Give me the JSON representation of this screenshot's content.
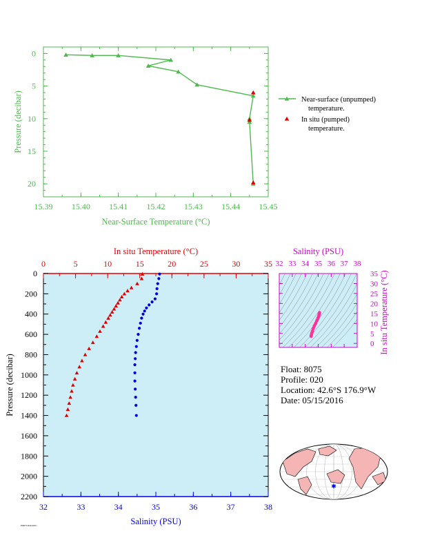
{
  "colors": {
    "green": "#4cba4c",
    "red": "#e00000",
    "blue": "#0000e0",
    "magenta": "#d000d0",
    "pink": "#ff3399",
    "panel_bg": "#cdedf7",
    "land": "#f5b5b5"
  },
  "chart_data": [
    {
      "type": "line",
      "xlabel": "Near-Surface Temperature (°C)",
      "ylabel": "Pressure (decibar)",
      "xlim": [
        15.39,
        15.45
      ],
      "ylim": [
        22,
        -1
      ],
      "xticks": [
        "15.39",
        "15.40",
        "15.41",
        "15.42",
        "15.43",
        "15.44",
        "15.45"
      ],
      "yticks": [
        "0",
        "5",
        "10",
        "15",
        "20"
      ],
      "series": [
        {
          "name": "Near-surface (unpumped) temperature.",
          "marker": "triangle",
          "x": [
            15.396,
            15.403,
            15.41,
            15.424,
            15.418,
            15.426,
            15.431,
            15.446,
            15.445,
            15.445,
            15.446
          ],
          "y": [
            0.2,
            0.3,
            0.3,
            1.0,
            1.9,
            2.8,
            4.8,
            6.5,
            10.0,
            10.5,
            20.0
          ]
        },
        {
          "name": "In situ (pumped) temperature.",
          "marker": "triangle",
          "x": [
            15.446,
            15.445,
            15.446
          ],
          "y": [
            6.0,
            10.2,
            19.8
          ]
        }
      ]
    },
    {
      "type": "scatter",
      "xlabel": "Salinity (PSU)",
      "x2label": "In situ Temperature (°C)",
      "ylabel": "Pressure (decibar)",
      "xlim": [
        32,
        38
      ],
      "x2lim": [
        0,
        35
      ],
      "ylim": [
        2200,
        0
      ],
      "xticks": [
        "32",
        "33",
        "34",
        "35",
        "36",
        "37",
        "38"
      ],
      "x2ticks": [
        "0",
        "5",
        "10",
        "15",
        "20",
        "25",
        "30",
        "35"
      ],
      "yticks": [
        "0",
        "200",
        "400",
        "600",
        "800",
        "1000",
        "1200",
        "1400",
        "1600",
        "1800",
        "2000",
        "2200"
      ],
      "series": [
        {
          "name": "Temperature",
          "axis": "top",
          "x": [
            15.4,
            15.3,
            14.6,
            13.7,
            13.1,
            12.6,
            12.2,
            11.9,
            11.6,
            11.3,
            11.0,
            10.7,
            10.4,
            10.1,
            9.7,
            9.3,
            8.8,
            8.3,
            7.7,
            7.1,
            6.5,
            6.0,
            5.6,
            5.2,
            4.9,
            4.6,
            4.4,
            4.2,
            4.0,
            3.8,
            3.6
          ],
          "y": [
            5,
            50,
            100,
            140,
            170,
            200,
            230,
            260,
            290,
            320,
            350,
            380,
            410,
            440,
            480,
            520,
            570,
            620,
            680,
            740,
            800,
            860,
            920,
            980,
            1040,
            1100,
            1160,
            1220,
            1280,
            1340,
            1400
          ]
        },
        {
          "name": "Salinity",
          "axis": "bottom",
          "x": [
            35.1,
            35.08,
            35.05,
            35.03,
            35.02,
            34.98,
            34.9,
            34.82,
            34.75,
            34.7,
            34.66,
            34.62,
            34.59,
            34.56,
            34.53,
            34.5,
            34.48,
            34.46,
            34.45,
            34.44,
            34.44,
            34.44,
            34.45,
            34.46,
            34.47,
            34.48
          ],
          "y": [
            5,
            50,
            100,
            150,
            200,
            250,
            280,
            310,
            340,
            370,
            400,
            440,
            490,
            540,
            600,
            660,
            720,
            780,
            840,
            900,
            980,
            1060,
            1140,
            1220,
            1300,
            1400
          ]
        }
      ]
    },
    {
      "type": "scatter",
      "xlabel": "Salinity (PSU)",
      "ylabel": "In situ Temperature (°C)",
      "xlim": [
        32,
        38
      ],
      "ylim": [
        -2,
        35
      ],
      "xticks": [
        "32",
        "33",
        "34",
        "35",
        "36",
        "37",
        "38"
      ],
      "yticks": [
        "0",
        "5",
        "10",
        "15",
        "20",
        "25",
        "30",
        "35"
      ],
      "series": [
        {
          "name": "T-S",
          "x": [
            34.45,
            34.47,
            34.5,
            34.55,
            34.62,
            34.7,
            34.8,
            34.9,
            34.98,
            35.03,
            35.06,
            35.08,
            35.1
          ],
          "y": [
            3.6,
            4.2,
            5.0,
            6.0,
            7.5,
            8.8,
            10.0,
            11.5,
            12.6,
            13.5,
            14.3,
            15.0,
            15.4
          ]
        }
      ]
    }
  ],
  "info": {
    "float": "Float:  8075",
    "profile": "Profile:  020",
    "location": "Location:  42.6°S  176.9°W",
    "date": "Date:  05/15/2016"
  },
  "legend": {
    "unpumped_line1": "Near-surface (unpumped)",
    "unpumped_line2": "temperature.",
    "pumped_line1": "In situ (pumped)",
    "pumped_line2": "temperature."
  },
  "footer_id": "F08075/D2016050"
}
